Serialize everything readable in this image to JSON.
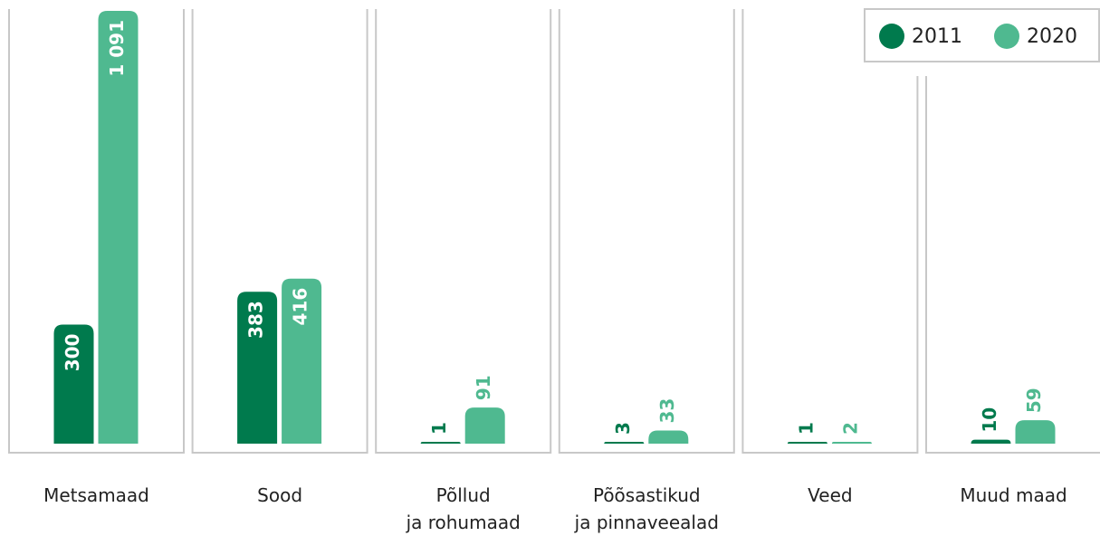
{
  "chart_data": {
    "type": "bar",
    "categories": [
      "Metsamaad",
      "Sood",
      "Põllud\nja rohumaad",
      "Põõsastikud\nja pinnaveealad",
      "Veed",
      "Muud maad"
    ],
    "series": [
      {
        "name": "2011",
        "color": "#007a4d",
        "values": [
          300,
          383,
          1,
          3,
          1,
          10
        ]
      },
      {
        "name": "2020",
        "color": "#4fb990",
        "values": [
          1091,
          416,
          91,
          33,
          2,
          59
        ],
        "value_labels": [
          "1 091",
          "416",
          "91",
          "33",
          "2",
          "59"
        ]
      }
    ]
  }
}
